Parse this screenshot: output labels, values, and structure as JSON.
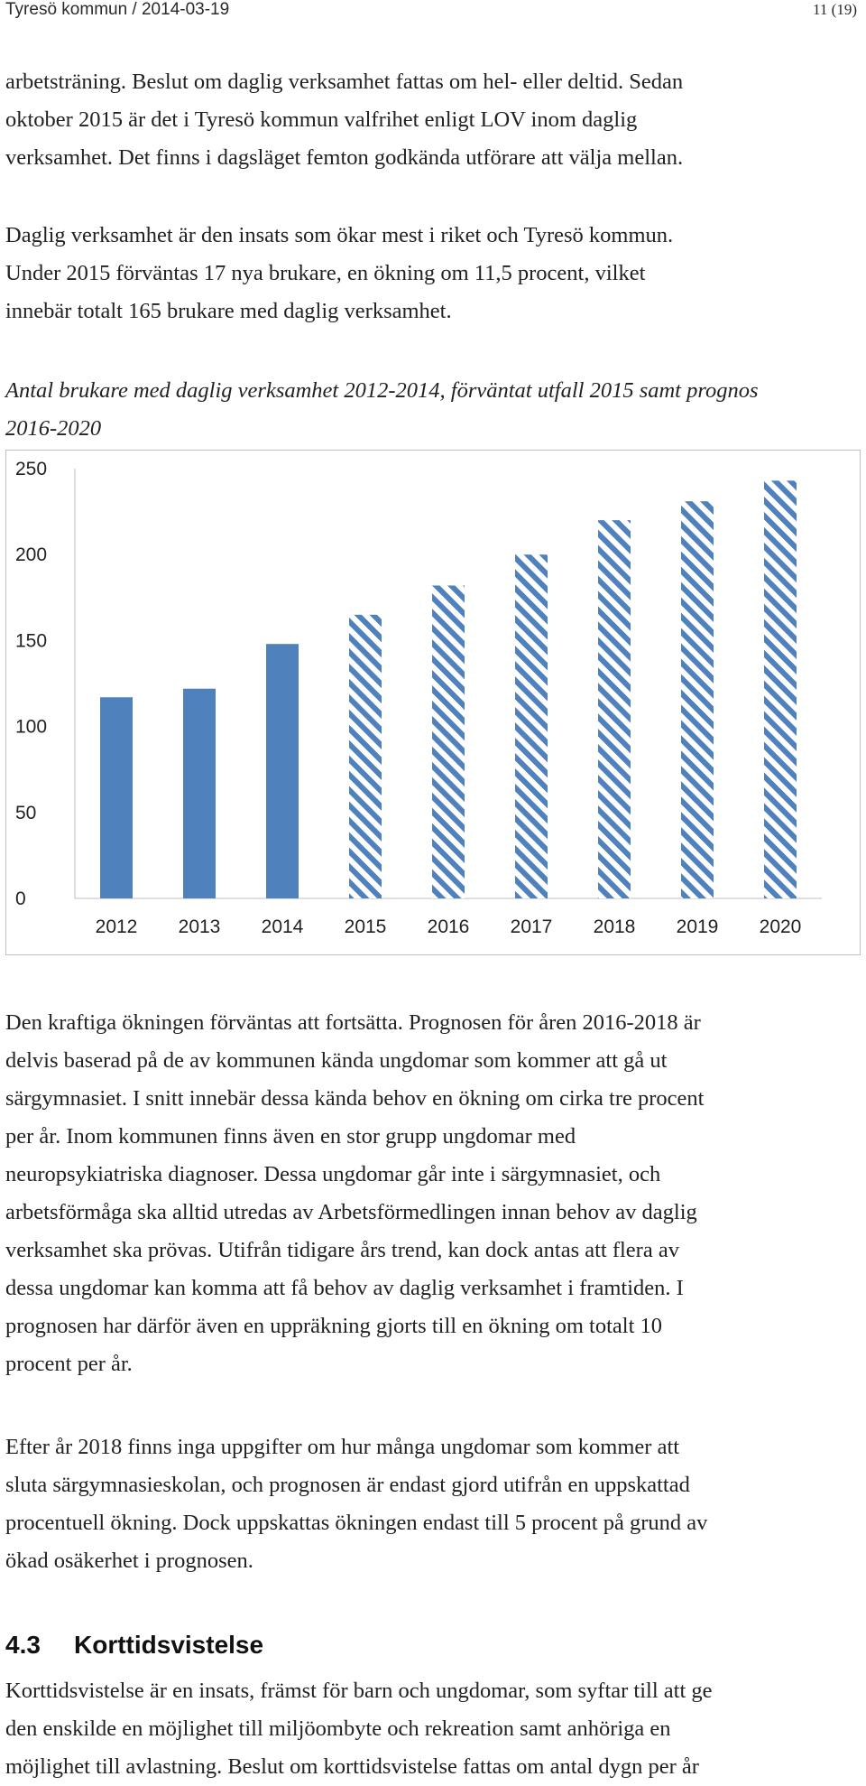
{
  "header": {
    "left": "Tyresö kommun  /  2014-03-19",
    "right": "11 (19)"
  },
  "paragraphs": {
    "p1": [
      "arbetsträning. Beslut om daglig verksamhet fattas om hel- eller deltid. Sedan",
      "oktober 2015 är det i Tyresö kommun valfrihet enligt LOV inom daglig",
      "verksamhet. Det finns i dagsläget femton godkända utförare att välja mellan."
    ],
    "p2": [
      "Daglig verksamhet är den insats som ökar mest i riket och Tyresö kommun.",
      "Under 2015 förväntas 17 nya brukare, en ökning om 11,5 procent, vilket",
      "innebär totalt 165 brukare med daglig verksamhet."
    ],
    "p3": [
      "Den kraftiga ökningen förväntas att fortsätta. Prognosen för åren 2016-2018 är",
      "delvis baserad på de av kommunen kända ungdomar som kommer att gå ut",
      "särgymnasiet. I snitt innebär dessa kända behov en ökning om cirka tre procent",
      "per år. Inom kommunen finns även en stor grupp ungdomar med",
      "neuropsykiatriska diagnoser. Dessa ungdomar går inte i särgymnasiet, och",
      "arbetsförmåga ska alltid utredas av Arbetsförmedlingen innan behov av daglig",
      "verksamhet ska prövas. Utifrån tidigare års trend, kan dock antas att flera av",
      "dessa ungdomar kan komma att få behov av daglig verksamhet i framtiden. I",
      "prognosen har därför även en uppräkning gjorts till en ökning om totalt 10",
      "procent per år."
    ],
    "p4": [
      "Efter år 2018 finns inga uppgifter om hur många ungdomar som kommer att",
      "sluta särgymnasieskolan, och prognosen är endast gjord utifrån en uppskattad",
      "procentuell ökning. Dock uppskattas ökningen endast till 5 procent på grund av",
      "ökad osäkerhet i prognosen."
    ],
    "p5": [
      "Korttidsvistelse är en insats, främst för barn och ungdomar, som syftar till att ge",
      "den enskilde en möjlighet till miljöombyte och rekreation samt anhöriga en",
      "möjlighet till avlastning. Beslut om korttidsvistelse fattas om antal dygn per år"
    ]
  },
  "section": {
    "number": "4.3",
    "title": "Korttidsvistelse"
  },
  "chart_data": {
    "type": "bar",
    "title": [
      "Antal brukare med daglig verksamhet 2012-2014, förväntat utfall 2015 samt prognos",
      "2016-2020"
    ],
    "categories": [
      "2012",
      "2013",
      "2014",
      "2015",
      "2016",
      "2017",
      "2018",
      "2019",
      "2020"
    ],
    "values": [
      117,
      122,
      148,
      165,
      182,
      200,
      220,
      231,
      243
    ],
    "bar_styles": [
      "solid",
      "solid",
      "solid",
      "hatched",
      "hatched",
      "hatched",
      "hatched",
      "hatched",
      "hatched"
    ],
    "yticks": [
      "0",
      "50",
      "100",
      "150",
      "200",
      "250"
    ],
    "ylim": [
      0,
      250
    ],
    "grid": false,
    "legend": "none",
    "colors": {
      "bar": "#4f81bd",
      "hatch_bg": "#ffffff",
      "axis": "#bfbfbf"
    }
  }
}
